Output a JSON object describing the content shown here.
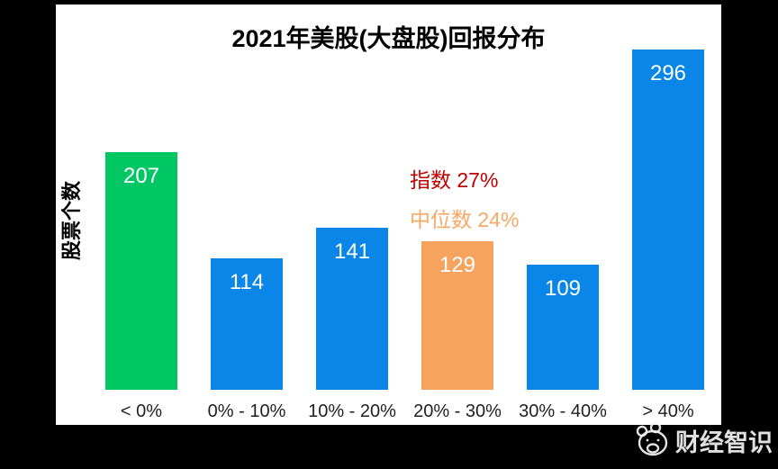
{
  "chart_data": {
    "type": "bar",
    "title": "2021年美股(大盘股)回报分布",
    "xlabel": "",
    "ylabel": "股票个数",
    "categories": [
      "< 0%",
      "0% - 10%",
      "10% - 20%",
      "20% - 30%",
      "30% - 40%",
      "> 40%"
    ],
    "values": [
      207,
      114,
      141,
      129,
      109,
      296
    ],
    "bar_colors": [
      "#00C764",
      "#0A86E8",
      "#0A86E8",
      "#F5A35D",
      "#0A86E8",
      "#0A86E8"
    ],
    "value_label_color": "#ffffff",
    "ylim": [
      0,
      300
    ],
    "grid": false,
    "legend": "none",
    "annotations": [
      {
        "label": "指数",
        "value": "27%",
        "color": "#C00000"
      },
      {
        "label": "中位数",
        "value": "24%",
        "color": "#F7A965"
      }
    ]
  },
  "watermark": {
    "icon": "mascot-face-icon",
    "text": "财经智识"
  },
  "colors": {
    "background": "#000000",
    "panel": "#ffffff",
    "title_text": "#000000",
    "axis_text": "#1f1f1f",
    "green_bar": "#00C764",
    "blue_bar": "#0A86E8",
    "orange_bar": "#F5A35D",
    "index_annotation": "#C00000",
    "median_annotation": "#F7A965",
    "watermark_text": "#F4F4F4"
  }
}
